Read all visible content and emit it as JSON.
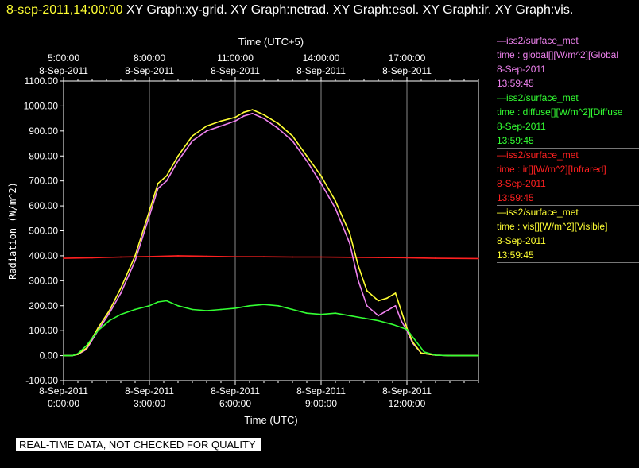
{
  "header": {
    "timestamp": "8-sep-2011,14:00:00",
    "title": "XY Graph:xy-grid.  XY Graph:netrad.  XY Graph:esol.  XY Graph:ir.  XY Graph:vis."
  },
  "legend": [
    {
      "source": "—iss2/surface_met",
      "label": "time : global[][W/m^2][Global",
      "date": "8-Sep-2011",
      "time": "13:59:45",
      "color": "#ee82ee"
    },
    {
      "source": "—iss2/surface_met",
      "label": "time : diffuse[][W/m^2][Diffuse",
      "date": "8-Sep-2011",
      "time": "13:59:45",
      "color": "#33ff33"
    },
    {
      "source": "—iss2/surface_met",
      "label": "time : ir[][W/m^2][Infrared]",
      "date": "8-Sep-2011",
      "time": "13:59:45",
      "color": "#ff2020"
    },
    {
      "source": "—iss2/surface_met",
      "label": "time : vis[][W/m^2][Visible]",
      "date": "8-Sep-2011",
      "time": "13:59:45",
      "color": "#ffff33"
    }
  ],
  "banner": "REAL-TIME DATA, NOT CHECKED FOR QUALITY",
  "chart_data": {
    "type": "line",
    "xlabel": "Time (UTC)",
    "x2label": "Time (UTC+5)",
    "ylabel": "Radiation (W/m^2)",
    "xlim": [
      0,
      14.5
    ],
    "ylim": [
      -100,
      1100
    ],
    "yticks": [
      -100,
      0,
      100,
      200,
      300,
      400,
      500,
      600,
      700,
      800,
      900,
      1000,
      1100
    ],
    "yticklabels": [
      "-100.00",
      "0.00",
      "100.00",
      "200.00",
      "300.00",
      "400.00",
      "500.00",
      "600.00",
      "700.00",
      "800.00",
      "900.00",
      "1000.00",
      "1100.00"
    ],
    "xticks": [
      0,
      3,
      6,
      9,
      12
    ],
    "xticklabels": [
      [
        "8-Sep-2011",
        "0:00:00"
      ],
      [
        "8-Sep-2011",
        "3:00:00"
      ],
      [
        "8-Sep-2011",
        "6:00:00"
      ],
      [
        "8-Sep-2011",
        "9:00:00"
      ],
      [
        "8-Sep-2011",
        "12:00:00"
      ]
    ],
    "x2ticklabels": [
      [
        "5:00:00",
        "8-Sep-2011"
      ],
      [
        "8:00:00",
        "8-Sep-2011"
      ],
      [
        "11:00:00",
        "8-Sep-2011"
      ],
      [
        "14:00:00",
        "8-Sep-2011"
      ],
      [
        "17:00:00",
        "8-Sep-2011"
      ]
    ],
    "grid": true,
    "legend": "right",
    "series": [
      {
        "name": "global",
        "color": "#ee82ee",
        "x": [
          0,
          0.3,
          0.5,
          0.8,
          1.2,
          1.6,
          2.0,
          2.5,
          3.0,
          3.3,
          3.6,
          4.0,
          4.5,
          5.0,
          5.5,
          6.0,
          6.3,
          6.6,
          7.0,
          7.5,
          8.0,
          8.5,
          9.0,
          9.5,
          10.0,
          10.3,
          10.6,
          11.0,
          11.3,
          11.6,
          11.8,
          12.0,
          12.2,
          12.5,
          13.0,
          13.5,
          14.5
        ],
        "y": [
          0,
          0,
          5,
          25,
          100,
          170,
          250,
          380,
          560,
          670,
          700,
          780,
          860,
          900,
          920,
          940,
          960,
          970,
          950,
          910,
          860,
          780,
          690,
          590,
          450,
          300,
          200,
          160,
          180,
          200,
          140,
          100,
          50,
          10,
          2,
          0,
          0
        ]
      },
      {
        "name": "diffuse",
        "color": "#33ff33",
        "x": [
          0,
          0.3,
          0.5,
          0.8,
          1.2,
          1.6,
          2.0,
          2.5,
          3.0,
          3.3,
          3.6,
          4.0,
          4.5,
          5.0,
          5.5,
          6.0,
          6.5,
          7.0,
          7.5,
          8.0,
          8.5,
          9.0,
          9.5,
          10.0,
          10.5,
          11.0,
          11.5,
          12.0,
          12.3,
          12.6,
          13.0,
          13.5,
          14.5
        ],
        "y": [
          0,
          0,
          8,
          40,
          100,
          140,
          165,
          185,
          200,
          215,
          220,
          200,
          185,
          180,
          185,
          190,
          200,
          205,
          200,
          185,
          170,
          165,
          170,
          160,
          150,
          140,
          125,
          105,
          60,
          15,
          2,
          0,
          0
        ]
      },
      {
        "name": "ir",
        "color": "#ff2020",
        "x": [
          0,
          1,
          2,
          3,
          4,
          5,
          6,
          7,
          8,
          9,
          10,
          11,
          12,
          13,
          14.5
        ],
        "y": [
          390,
          392,
          395,
          397,
          400,
          398,
          396,
          396,
          395,
          395,
          394,
          393,
          392,
          390,
          389
        ]
      },
      {
        "name": "vis",
        "color": "#ffff33",
        "x": [
          0,
          0.3,
          0.5,
          0.8,
          1.2,
          1.6,
          2.0,
          2.5,
          3.0,
          3.3,
          3.6,
          4.0,
          4.5,
          5.0,
          5.5,
          6.0,
          6.3,
          6.6,
          7.0,
          7.5,
          8.0,
          8.5,
          9.0,
          9.5,
          10.0,
          10.3,
          10.6,
          11.0,
          11.3,
          11.6,
          11.8,
          12.0,
          12.2,
          12.5,
          13.0,
          13.5,
          14.5
        ],
        "y": [
          0,
          0,
          6,
          30,
          110,
          180,
          270,
          400,
          580,
          690,
          720,
          800,
          880,
          920,
          940,
          955,
          975,
          985,
          965,
          930,
          880,
          800,
          720,
          620,
          490,
          360,
          260,
          220,
          230,
          250,
          180,
          110,
          55,
          10,
          2,
          0,
          0
        ]
      }
    ]
  }
}
